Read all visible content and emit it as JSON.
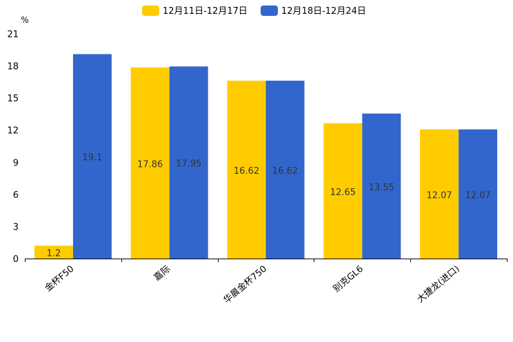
{
  "chart_data": {
    "type": "bar",
    "title": "",
    "xlabel": "",
    "ylabel": "%",
    "ylim": [
      0,
      21
    ],
    "yticks": [
      0,
      3,
      6,
      9,
      12,
      15,
      18,
      21
    ],
    "grid": false,
    "legend_position": "top-center",
    "categories": [
      "金杯F50",
      "嘉际",
      "华晨金杯750",
      "别克GL6",
      "大捷龙(进口)"
    ],
    "series": [
      {
        "name": "12月11日-12月17日",
        "color": "#FFCC00",
        "values": [
          1.2,
          17.86,
          16.62,
          12.65,
          12.07
        ],
        "labels": [
          "1.2",
          "17.86",
          "16.62",
          "12.65",
          "12.07"
        ]
      },
      {
        "name": "12月18日-12月24日",
        "color": "#3366CC",
        "values": [
          19.1,
          17.95,
          16.62,
          13.55,
          12.07
        ],
        "labels": [
          "19.1",
          "17.95",
          "16.62",
          "13.55",
          "12.07"
        ]
      }
    ]
  },
  "style": {
    "axis_color": "#000000",
    "label_color": "#333333",
    "text_color": "#000000"
  }
}
